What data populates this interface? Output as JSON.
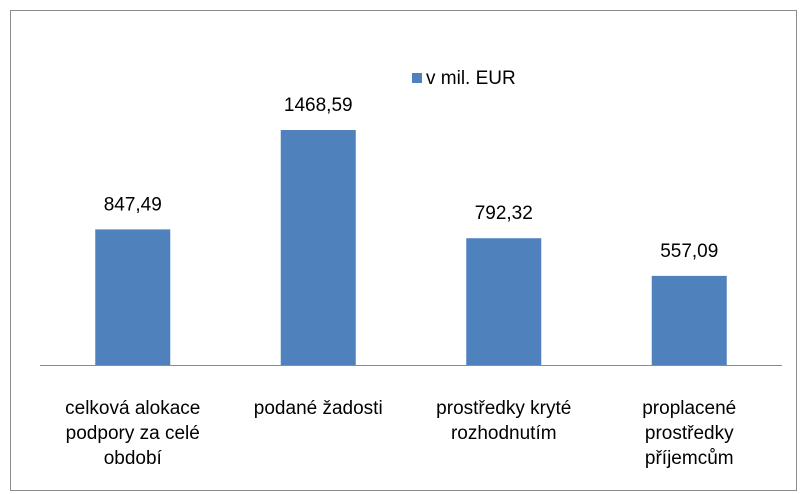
{
  "chart_data": {
    "type": "bar",
    "categories": [
      "celková alokace podpory za celé období",
      "podané žadosti",
      "prostředky kryté rozhodnutím",
      "proplacené prostředky příjemcům"
    ],
    "series": [
      {
        "name": "v mil. EUR",
        "color": "#4f81bd",
        "values": [
          847.49,
          1468.59,
          792.32,
          557.09
        ],
        "value_labels": [
          "847,49",
          "1468,59",
          "792,32",
          "557,09"
        ]
      }
    ],
    "ylim": [
      0,
      1600
    ],
    "legend": "top"
  }
}
